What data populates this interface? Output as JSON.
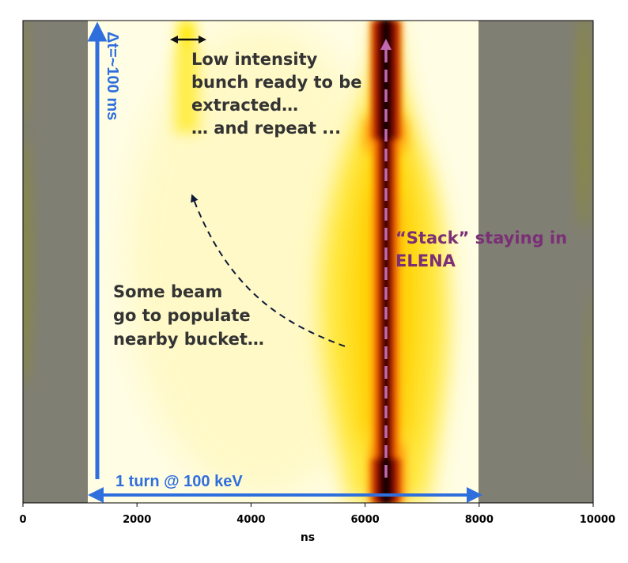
{
  "chart_data": {
    "type": "heatmap",
    "title": "",
    "xlabel": "ns",
    "ylabel": "",
    "xlim": [
      0,
      10000
    ],
    "x_ticks": [
      0,
      2000,
      4000,
      6000,
      8000,
      10000
    ],
    "x_tick_labels": [
      "0",
      "2000",
      "4000",
      "6000",
      "8000",
      "10000"
    ],
    "colormap": "afmhot_r",
    "grid": false,
    "shaded_regions_outside_turn_ns": [
      [
        0,
        1150
      ],
      [
        8050,
        10000
      ]
    ],
    "features": [
      {
        "kind": "stack",
        "center_ns": 6380,
        "core_width_ns": 250,
        "halo_width_ns": 1300
      },
      {
        "kind": "low-intensity-bunch",
        "center_ns": 2900,
        "width_ns": 350
      }
    ]
  },
  "annotations": {
    "time_span": "Δt=~100 ms",
    "low_intensity": [
      "Low intensity",
      "bunch ready to be",
      "extracted…",
      "… and repeat ..."
    ],
    "stack": [
      "“Stack” staying in",
      "ELENA"
    ],
    "some_beam": [
      "Some beam",
      "go to populate",
      "nearby bucket…"
    ],
    "one_turn": "1 turn @ 100 keV"
  },
  "colors": {
    "blue_arrow": "#2f6fdd",
    "stack_line": "#c16ab2",
    "stack_text": "#7a2f76",
    "dark_text": "#333333",
    "shade": "#807f73"
  }
}
